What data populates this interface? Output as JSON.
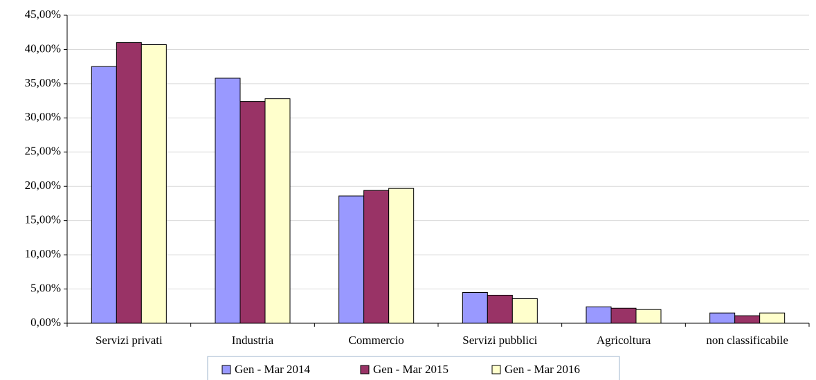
{
  "chart_data": {
    "type": "bar",
    "categories": [
      "Servizi privati",
      "Industria",
      "Commercio",
      "Servizi pubblici",
      "Agricoltura",
      "non classificabile"
    ],
    "series": [
      {
        "name": "Gen - Mar 2014",
        "color": "#9999ff",
        "values": [
          37.5,
          35.8,
          18.6,
          4.5,
          2.4,
          1.5
        ]
      },
      {
        "name": "Gen - Mar 2015",
        "color": "#993366",
        "values": [
          41.0,
          32.4,
          19.4,
          4.1,
          2.2,
          1.1
        ]
      },
      {
        "name": "Gen - Mar 2016",
        "color": "#ffffcc",
        "values": [
          40.7,
          32.8,
          19.7,
          3.6,
          2.0,
          1.5
        ]
      }
    ],
    "ylim": [
      0,
      45
    ],
    "yticks": [
      {
        "value": 0,
        "label": "0,00%"
      },
      {
        "value": 5,
        "label": "5,00%"
      },
      {
        "value": 10,
        "label": "10,00%"
      },
      {
        "value": 15,
        "label": "15,00%"
      },
      {
        "value": 20,
        "label": "20,00%"
      },
      {
        "value": 25,
        "label": "25,00%"
      },
      {
        "value": 30,
        "label": "30,00%"
      },
      {
        "value": 35,
        "label": "35,00%"
      },
      {
        "value": 40,
        "label": "40,00%"
      },
      {
        "value": 45,
        "label": "45,00%"
      }
    ],
    "grid": true,
    "legend": "bottom"
  }
}
